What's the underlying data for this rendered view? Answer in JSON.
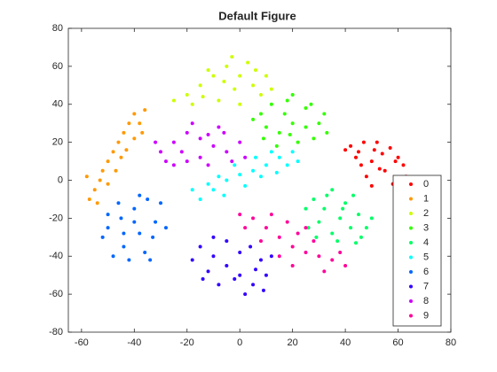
{
  "chart_data": {
    "type": "scatter",
    "title": "Default Figure",
    "xlim": [
      -65,
      80
    ],
    "ylim": [
      -80,
      80
    ],
    "xticks": [
      -60,
      -40,
      -20,
      0,
      20,
      40,
      60,
      80
    ],
    "yticks": [
      -80,
      -60,
      -40,
      -20,
      0,
      20,
      40,
      60,
      80
    ],
    "legend": "lower-right",
    "series": [
      {
        "name": "0",
        "color": "#ff0000",
        "points": [
          [
            45,
            15
          ],
          [
            50,
            10
          ],
          [
            55,
            5
          ],
          [
            60,
            12
          ],
          [
            48,
            2
          ],
          [
            42,
            18
          ],
          [
            52,
            20
          ],
          [
            58,
            -2
          ],
          [
            62,
            8
          ],
          [
            46,
            8
          ],
          [
            54,
            14
          ],
          [
            50,
            -3
          ],
          [
            44,
            12
          ],
          [
            57,
            17
          ],
          [
            63,
            2
          ],
          [
            47,
            20
          ],
          [
            53,
            6
          ],
          [
            40,
            16
          ],
          [
            59,
            10
          ],
          [
            51,
            16
          ]
        ]
      },
      {
        "name": "1",
        "color": "#ff9900",
        "points": [
          [
            -57,
            -10
          ],
          [
            -55,
            -5
          ],
          [
            -53,
            0
          ],
          [
            -52,
            5
          ],
          [
            -50,
            10
          ],
          [
            -48,
            15
          ],
          [
            -46,
            20
          ],
          [
            -44,
            25
          ],
          [
            -42,
            30
          ],
          [
            -40,
            35
          ],
          [
            -36,
            37
          ],
          [
            -38,
            30
          ],
          [
            -40,
            22
          ],
          [
            -45,
            12
          ],
          [
            -50,
            -2
          ],
          [
            -54,
            -12
          ],
          [
            -47,
            5
          ],
          [
            -43,
            16
          ],
          [
            -37,
            25
          ],
          [
            -58,
            2
          ]
        ]
      },
      {
        "name": "2",
        "color": "#ccff00",
        "points": [
          [
            -20,
            45
          ],
          [
            -15,
            50
          ],
          [
            -10,
            55
          ],
          [
            -5,
            60
          ],
          [
            0,
            55
          ],
          [
            5,
            50
          ],
          [
            10,
            55
          ],
          [
            -8,
            42
          ],
          [
            -2,
            48
          ],
          [
            3,
            62
          ],
          [
            -18,
            40
          ],
          [
            -12,
            58
          ],
          [
            8,
            45
          ],
          [
            -25,
            42
          ],
          [
            0,
            40
          ],
          [
            6,
            58
          ],
          [
            -6,
            52
          ],
          [
            -14,
            44
          ],
          [
            12,
            48
          ],
          [
            -3,
            65
          ]
        ]
      },
      {
        "name": "3",
        "color": "#33ff00",
        "points": [
          [
            8,
            35
          ],
          [
            12,
            40
          ],
          [
            18,
            42
          ],
          [
            25,
            38
          ],
          [
            30,
            30
          ],
          [
            20,
            30
          ],
          [
            15,
            25
          ],
          [
            10,
            28
          ],
          [
            28,
            22
          ],
          [
            22,
            20
          ],
          [
            32,
            35
          ],
          [
            5,
            32
          ],
          [
            17,
            35
          ],
          [
            25,
            28
          ],
          [
            14,
            18
          ],
          [
            20,
            45
          ],
          [
            33,
            25
          ],
          [
            9,
            22
          ],
          [
            27,
            40
          ],
          [
            19,
            24
          ]
        ]
      },
      {
        "name": "4",
        "color": "#00ff66",
        "points": [
          [
            28,
            -10
          ],
          [
            32,
            -15
          ],
          [
            38,
            -20
          ],
          [
            42,
            -25
          ],
          [
            46,
            -30
          ],
          [
            35,
            -28
          ],
          [
            30,
            -22
          ],
          [
            40,
            -12
          ],
          [
            45,
            -18
          ],
          [
            25,
            -15
          ],
          [
            33,
            -8
          ],
          [
            48,
            -25
          ],
          [
            37,
            -32
          ],
          [
            29,
            -30
          ],
          [
            43,
            -8
          ],
          [
            35,
            -5
          ],
          [
            50,
            -20
          ],
          [
            26,
            -25
          ],
          [
            39,
            -15
          ],
          [
            44,
            -33
          ]
        ]
      },
      {
        "name": "5",
        "color": "#00ffff",
        "points": [
          [
            -15,
            -10
          ],
          [
            -10,
            -5
          ],
          [
            -5,
            0
          ],
          [
            0,
            3
          ],
          [
            5,
            5
          ],
          [
            10,
            8
          ],
          [
            15,
            12
          ],
          [
            20,
            15
          ],
          [
            -12,
            -2
          ],
          [
            -6,
            -8
          ],
          [
            2,
            -3
          ],
          [
            8,
            2
          ],
          [
            12,
            15
          ],
          [
            18,
            8
          ],
          [
            -18,
            -5
          ],
          [
            -2,
            8
          ],
          [
            6,
            12
          ],
          [
            14,
            4
          ],
          [
            22,
            10
          ],
          [
            -8,
            2
          ]
        ]
      },
      {
        "name": "6",
        "color": "#0066ff",
        "points": [
          [
            -50,
            -25
          ],
          [
            -45,
            -20
          ],
          [
            -40,
            -15
          ],
          [
            -35,
            -10
          ],
          [
            -30,
            -12
          ],
          [
            -32,
            -22
          ],
          [
            -38,
            -28
          ],
          [
            -44,
            -35
          ],
          [
            -48,
            -40
          ],
          [
            -42,
            -42
          ],
          [
            -36,
            -38
          ],
          [
            -33,
            -30
          ],
          [
            -46,
            -12
          ],
          [
            -52,
            -30
          ],
          [
            -40,
            -22
          ],
          [
            -28,
            -25
          ],
          [
            -44,
            -28
          ],
          [
            -38,
            -8
          ],
          [
            -50,
            -18
          ],
          [
            -34,
            -42
          ]
        ]
      },
      {
        "name": "7",
        "color": "#3300ff",
        "points": [
          [
            -15,
            -35
          ],
          [
            -10,
            -40
          ],
          [
            -5,
            -45
          ],
          [
            0,
            -50
          ],
          [
            5,
            -55
          ],
          [
            10,
            -50
          ],
          [
            -12,
            -48
          ],
          [
            -8,
            -55
          ],
          [
            0,
            -38
          ],
          [
            8,
            -42
          ],
          [
            -18,
            -42
          ],
          [
            2,
            -60
          ],
          [
            -5,
            -32
          ],
          [
            12,
            -40
          ],
          [
            -2,
            -52
          ],
          [
            6,
            -47
          ],
          [
            -10,
            -30
          ],
          [
            4,
            -35
          ],
          [
            -14,
            -52
          ],
          [
            9,
            -58
          ]
        ]
      },
      {
        "name": "8",
        "color": "#cc00ff",
        "points": [
          [
            -30,
            15
          ],
          [
            -25,
            20
          ],
          [
            -20,
            25
          ],
          [
            -15,
            22
          ],
          [
            -10,
            18
          ],
          [
            -5,
            15
          ],
          [
            0,
            20
          ],
          [
            -28,
            10
          ],
          [
            -20,
            10
          ],
          [
            -12,
            8
          ],
          [
            -6,
            25
          ],
          [
            -22,
            15
          ],
          [
            -15,
            12
          ],
          [
            2,
            12
          ],
          [
            -32,
            20
          ],
          [
            -8,
            28
          ],
          [
            -18,
            30
          ],
          [
            -25,
            8
          ],
          [
            -3,
            10
          ],
          [
            -12,
            24
          ]
        ]
      },
      {
        "name": "9",
        "color": "#ff0099",
        "points": [
          [
            5,
            -20
          ],
          [
            10,
            -25
          ],
          [
            15,
            -30
          ],
          [
            20,
            -35
          ],
          [
            25,
            -38
          ],
          [
            30,
            -40
          ],
          [
            35,
            -42
          ],
          [
            8,
            -32
          ],
          [
            12,
            -18
          ],
          [
            18,
            -22
          ],
          [
            22,
            -28
          ],
          [
            28,
            -32
          ],
          [
            40,
            -45
          ],
          [
            2,
            -25
          ],
          [
            15,
            -40
          ],
          [
            25,
            -25
          ],
          [
            32,
            -48
          ],
          [
            0,
            -18
          ],
          [
            38,
            -38
          ],
          [
            20,
            -45
          ]
        ]
      }
    ]
  }
}
